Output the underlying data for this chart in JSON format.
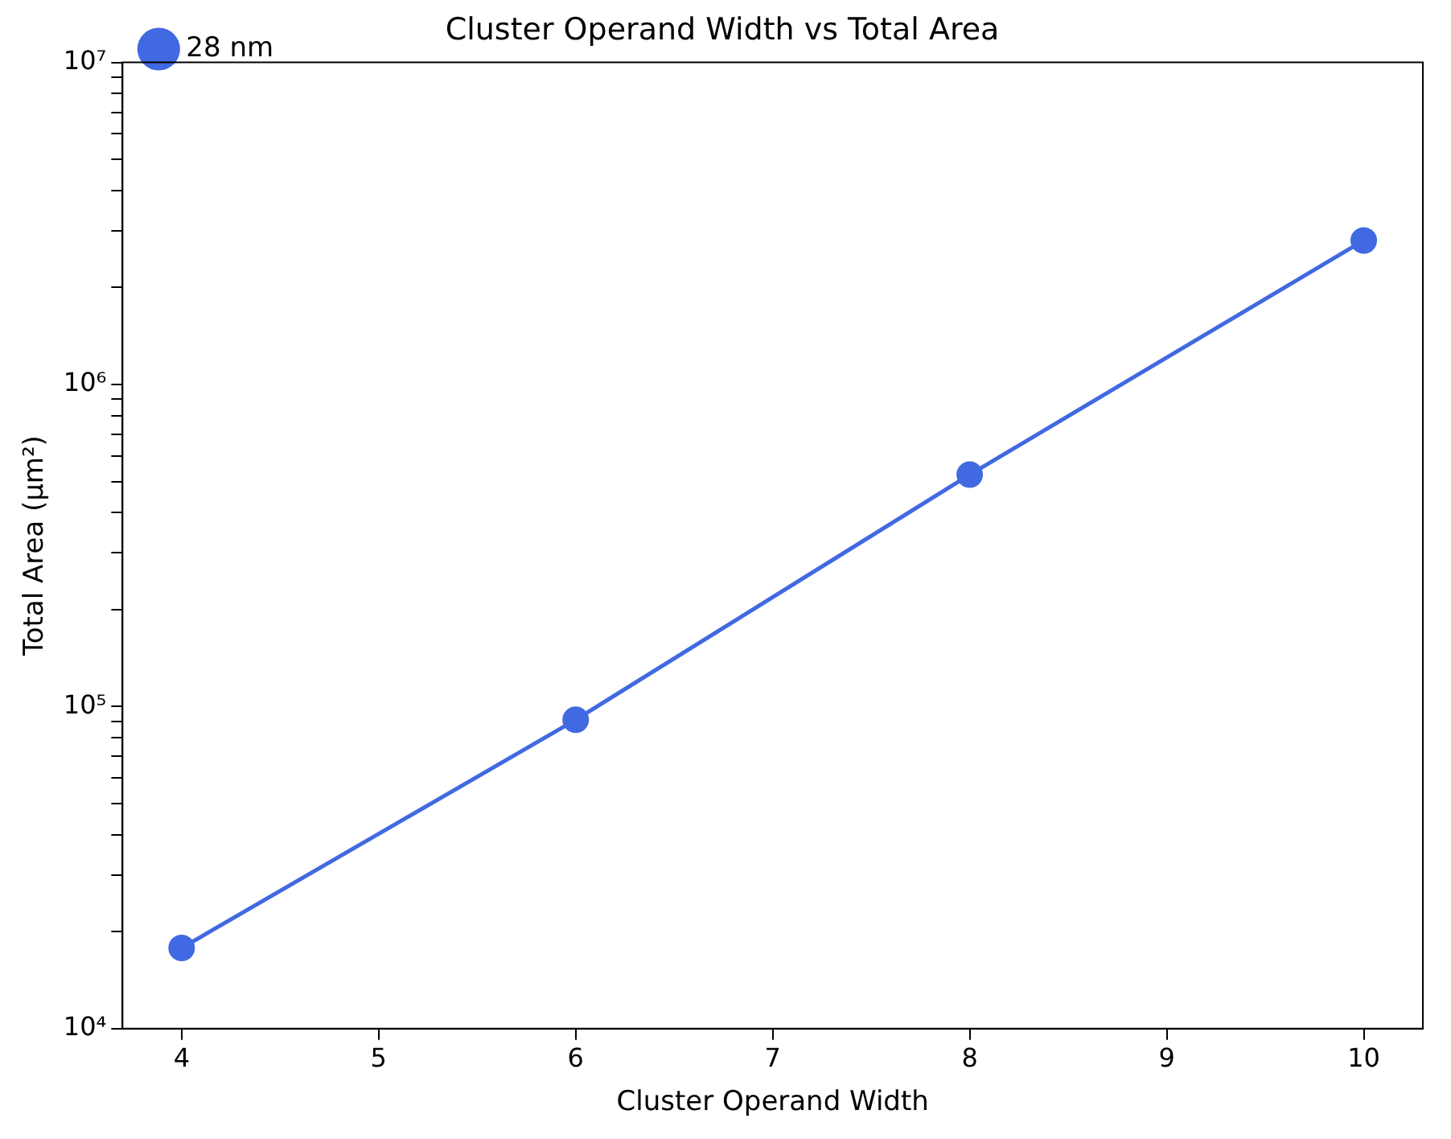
{
  "chart_data": {
    "type": "line",
    "title": "Cluster Operand Width vs Total Area",
    "xlabel": "Cluster Operand Width",
    "ylabel": "Total Area (μm²)",
    "x": [
      4,
      6,
      8,
      10
    ],
    "series": [
      {
        "name": "28 nm",
        "color": "#4169e1",
        "values": [
          17800,
          91000,
          525000,
          2800000
        ]
      }
    ],
    "xlim": [
      3.7,
      10.3
    ],
    "xticks": [
      4,
      5,
      6,
      7,
      8,
      9,
      10
    ],
    "ylim": [
      10000,
      10000000
    ],
    "yticks": [
      {
        "value": 10000,
        "label": "10⁴"
      },
      {
        "value": 20000,
        "label": null
      },
      {
        "value": 30000,
        "label": null
      },
      {
        "value": 40000,
        "label": null
      },
      {
        "value": 50000,
        "label": null
      },
      {
        "value": 60000,
        "label": null
      },
      {
        "value": 70000,
        "label": null
      },
      {
        "value": 80000,
        "label": null
      },
      {
        "value": 90000,
        "label": null
      },
      {
        "value": 100000,
        "label": "10⁵"
      },
      {
        "value": 200000,
        "label": null
      },
      {
        "value": 300000,
        "label": null
      },
      {
        "value": 400000,
        "label": null
      },
      {
        "value": 500000,
        "label": null
      },
      {
        "value": 600000,
        "label": null
      },
      {
        "value": 700000,
        "label": null
      },
      {
        "value": 800000,
        "label": null
      },
      {
        "value": 900000,
        "label": null
      },
      {
        "value": 1000000,
        "label": "10⁶"
      },
      {
        "value": 2000000,
        "label": null
      },
      {
        "value": 3000000,
        "label": null
      },
      {
        "value": 4000000,
        "label": null
      },
      {
        "value": 5000000,
        "label": null
      },
      {
        "value": 6000000,
        "label": null
      },
      {
        "value": 7000000,
        "label": null
      },
      {
        "value": 8000000,
        "label": null
      },
      {
        "value": 9000000,
        "label": null
      },
      {
        "value": 10000000,
        "label": "10⁷"
      }
    ],
    "log": true,
    "grid": false,
    "legend": "top left",
    "marker": "circle",
    "line_style": "solid"
  }
}
